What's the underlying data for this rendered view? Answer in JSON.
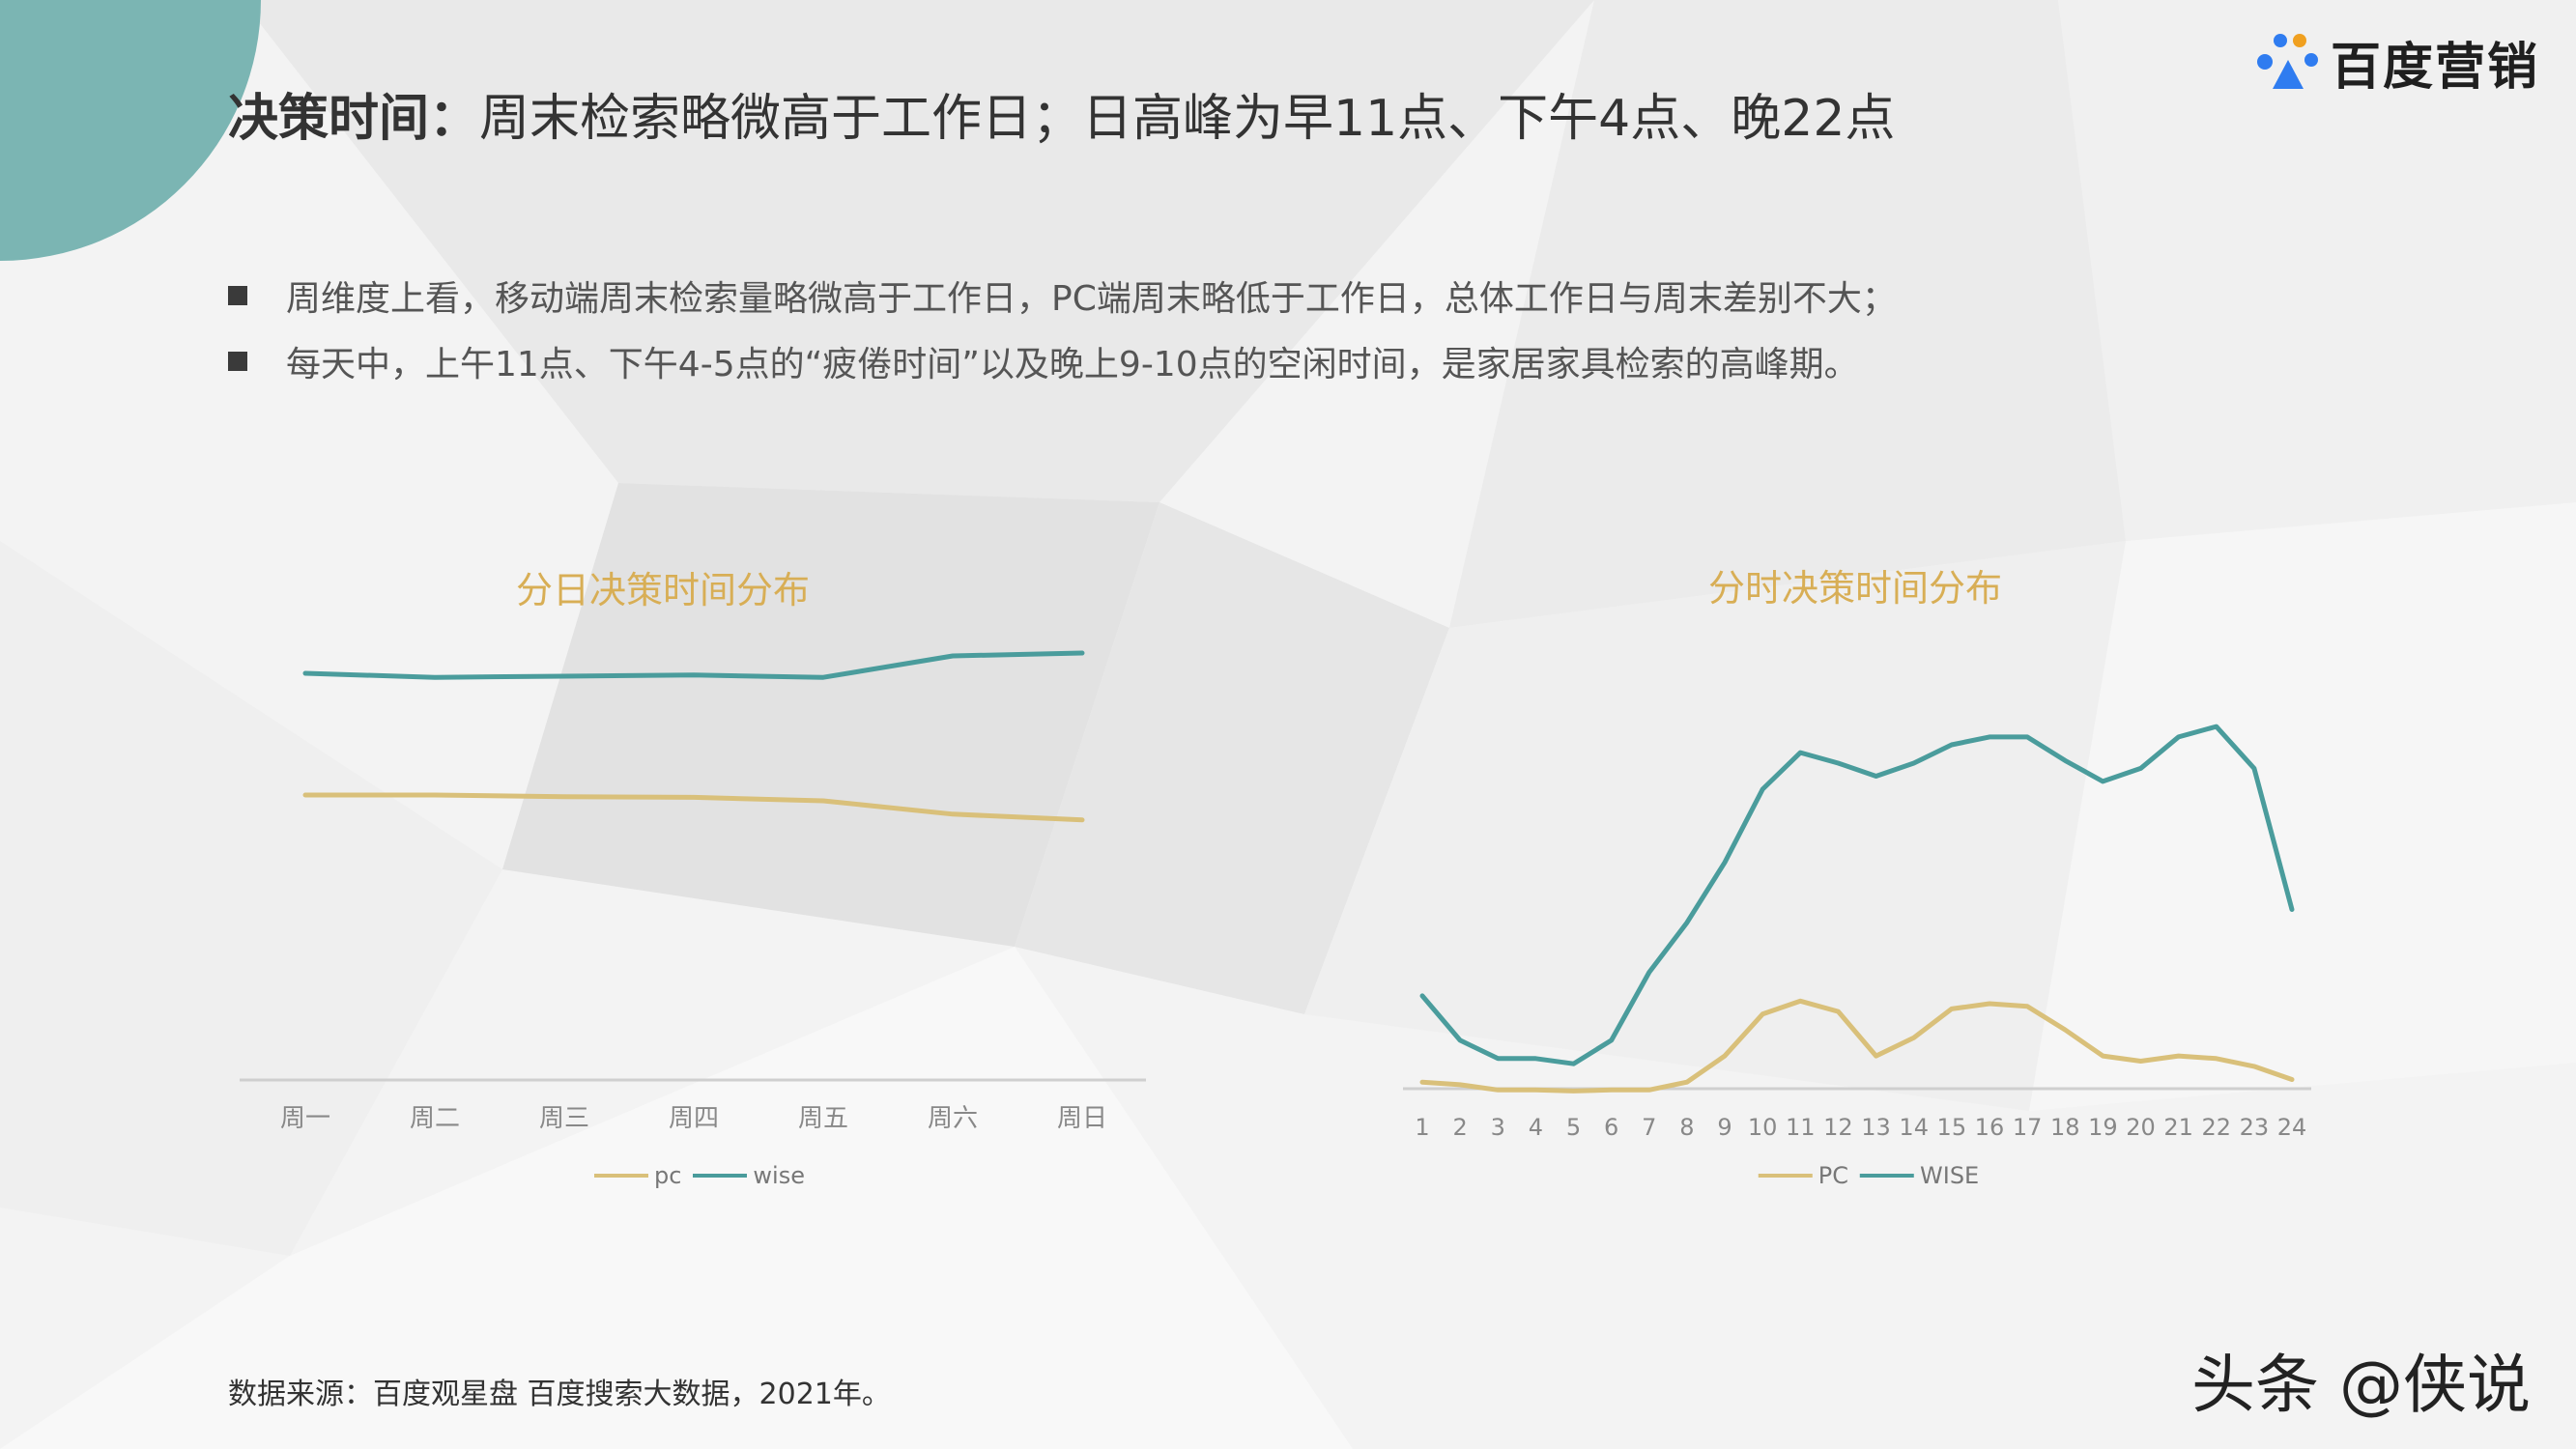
{
  "slide": {
    "title_bold": "决策时间：",
    "title_rest": "周末检索略微高于工作日；日高峰为早11点、下午4点、晚22点",
    "bullets": [
      "周维度上看，移动端周末检索量略微高于工作日，PC端周末略低于工作日，总体工作日与周末差别不大；",
      "每天中，上午11点、下午4-5点的“疲倦时间”以及晚上9-10点的空闲时间，是家居家具检索的高峰期。"
    ],
    "source": "数据来源：百度观星盘  百度搜索大数据，2021年。",
    "watermark": "头条 @侠说",
    "logo_text": "百度营销"
  },
  "colors": {
    "pc": "#d9c07a",
    "wise": "#4a9c9c",
    "title": "#d8ae55",
    "accent_circle": "#7bb5b3"
  },
  "chart_data": [
    {
      "type": "line",
      "title": "分日决策时间分布",
      "categories": [
        "周一",
        "周二",
        "周三",
        "周四",
        "周五",
        "周六",
        "周日"
      ],
      "series": [
        {
          "name": "pc",
          "values": [
            0.395,
            0.395,
            0.392,
            0.391,
            0.385,
            0.362,
            0.352
          ]
        },
        {
          "name": "wise",
          "values": [
            0.605,
            0.598,
            0.6,
            0.602,
            0.598,
            0.635,
            0.64
          ]
        }
      ],
      "ylim": [
        0,
        0.7
      ],
      "grid": false,
      "legend": "bottom"
    },
    {
      "type": "line",
      "title": "分时决策时间分布",
      "categories": [
        "1",
        "2",
        "3",
        "4",
        "5",
        "6",
        "7",
        "8",
        "9",
        "10",
        "11",
        "12",
        "13",
        "14",
        "15",
        "16",
        "17",
        "18",
        "19",
        "20",
        "21",
        "22",
        "23",
        "24"
      ],
      "series": [
        {
          "name": "PC",
          "values": [
            2.0,
            1.5,
            0.5,
            0.5,
            0.3,
            0.5,
            0.5,
            2.0,
            7.0,
            15.0,
            17.5,
            15.5,
            7.0,
            10.5,
            16.0,
            17.0,
            16.5,
            12.0,
            7.0,
            6.0,
            7.0,
            6.5,
            5.0,
            2.5
          ]
        },
        {
          "name": "WISE",
          "values": [
            18.5,
            10.0,
            6.5,
            6.5,
            5.5,
            10.0,
            23.0,
            32.5,
            44.0,
            58.0,
            65.0,
            63.0,
            60.5,
            63.0,
            66.5,
            68.0,
            68.0,
            63.5,
            59.5,
            62.0,
            68.0,
            70.0,
            62.0,
            35.0
          ]
        }
      ],
      "ylim": [
        0,
        75
      ],
      "grid": false,
      "legend": "bottom"
    }
  ]
}
